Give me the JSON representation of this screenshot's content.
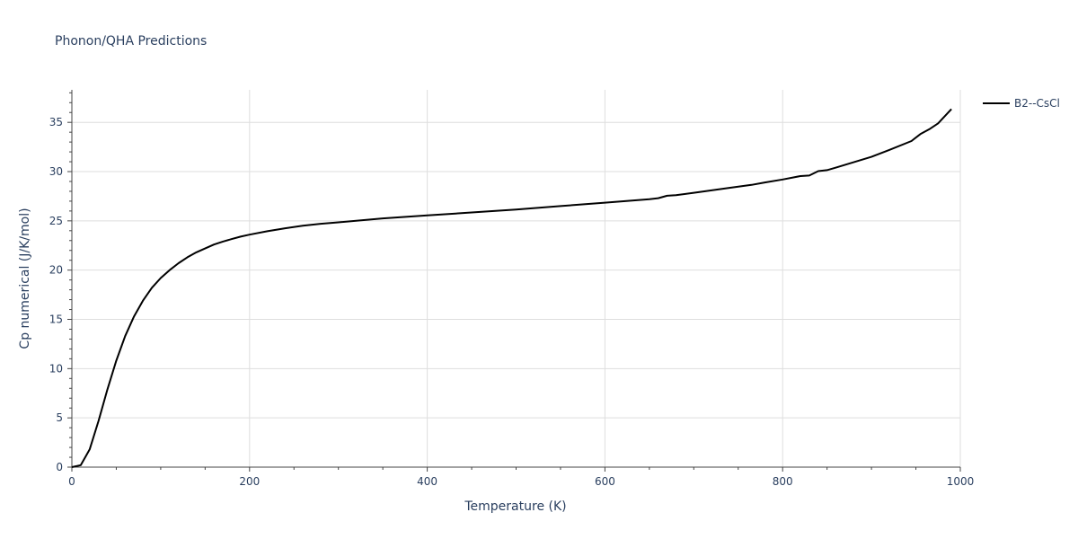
{
  "chart_data": {
    "type": "line",
    "title": "Phonon/QHA Predictions",
    "xlabel": "Temperature (K)",
    "ylabel": "Cp numerical (J/K/mol)",
    "xlim": [
      0,
      1000
    ],
    "ylim": [
      0,
      38.3
    ],
    "x_ticks": [
      0,
      200,
      400,
      600,
      800,
      1000
    ],
    "x_tick_labels": [
      "0",
      "200",
      "400",
      "600",
      "800",
      "1000"
    ],
    "y_ticks": [
      0,
      5,
      10,
      15,
      20,
      25,
      30,
      35
    ],
    "y_tick_labels": [
      "0",
      "5",
      "10",
      "15",
      "20",
      "25",
      "30",
      "35"
    ],
    "grid": true,
    "legend_position": "top-right",
    "series": [
      {
        "name": "B2--CsCl",
        "color": "#000000",
        "x": [
          0,
          10,
          20,
          30,
          40,
          50,
          60,
          70,
          80,
          90,
          100,
          110,
          120,
          130,
          140,
          150,
          160,
          170,
          180,
          190,
          200,
          220,
          240,
          260,
          280,
          300,
          350,
          400,
          450,
          500,
          550,
          600,
          650,
          660,
          670,
          680,
          700,
          720,
          740,
          765,
          780,
          800,
          820,
          830,
          840,
          850,
          860,
          880,
          900,
          920,
          945,
          955,
          965,
          975,
          990
        ],
        "y": [
          0,
          0.2,
          1.8,
          4.7,
          7.9,
          10.8,
          13.3,
          15.3,
          16.9,
          18.2,
          19.2,
          20.0,
          20.7,
          21.3,
          21.8,
          22.2,
          22.6,
          22.9,
          23.15,
          23.4,
          23.6,
          23.95,
          24.25,
          24.5,
          24.7,
          24.85,
          25.25,
          25.55,
          25.85,
          26.15,
          26.5,
          26.85,
          27.2,
          27.3,
          27.55,
          27.6,
          27.85,
          28.1,
          28.35,
          28.65,
          28.9,
          29.2,
          29.55,
          29.6,
          30.05,
          30.15,
          30.4,
          30.95,
          31.5,
          32.2,
          33.1,
          33.8,
          34.3,
          34.9,
          36.35
        ]
      }
    ]
  }
}
